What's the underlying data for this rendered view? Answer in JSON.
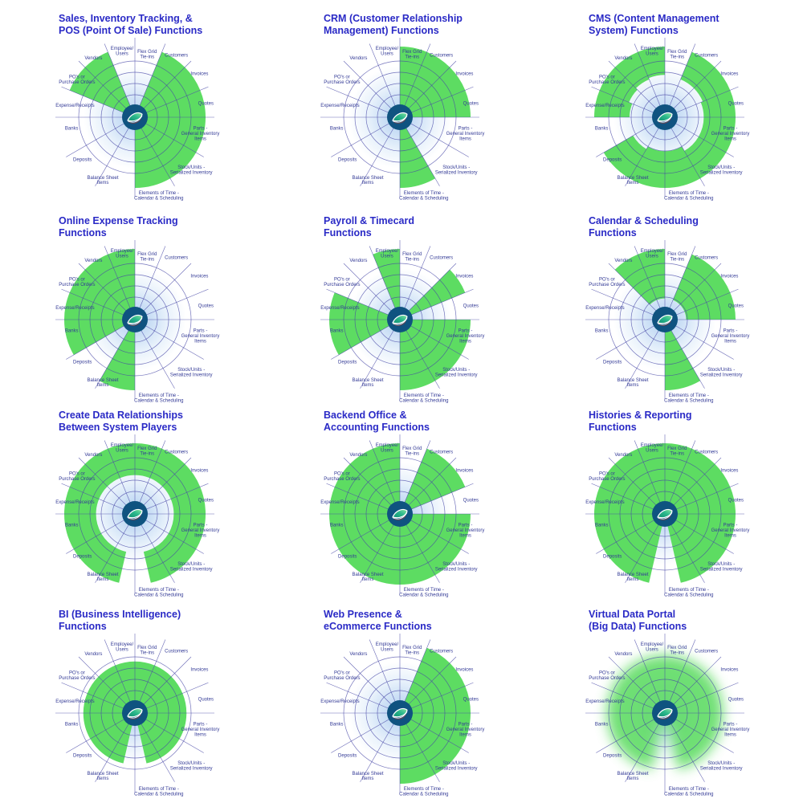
{
  "page": {
    "background": "#ffffff"
  },
  "colors": {
    "sector_green": "#5ddc62",
    "grid_line": "#4545a5",
    "glow_blue": "#bdd8f3",
    "title_blue": "#2a2ac6",
    "label_navy": "#333a96",
    "center_disc_blue": "#0f5380",
    "leaf_teal_dark": "#0d8e72",
    "leaf_green_light": "#8ee6a2",
    "leaf_outline_white": "#ffffff",
    "leaf_accent_red": "#c0392b"
  },
  "chart_data": {
    "type": "pie",
    "variant": "radial-sector-coverage-grid",
    "description": "Twelve polar charts sharing 14 business-function spokes. Green sectors mark functions covered by each module; values give [inner,outer] radial extent as fraction of full radius (null = not covered). bottom_notch = white wedge cut at the bottom (167deg-193deg). fuzzy = soft blurred green disc.",
    "grid_rings": 4,
    "legend_position": "none",
    "sector_labels": [
      "Flex Grid Tie-ins",
      "Customers",
      "Invoices",
      "Quotes",
      "Parts - General Inventory Items",
      "Stock/Units - Serialized Inventory",
      "Elements of Time - Calendar & Scheduling",
      "Balance Sheet Items",
      "Deposits",
      "Banks",
      "Expense/Receipts",
      "PO's or Purchase Orders",
      "Vendors",
      "Employee/ Users"
    ],
    "sector_label_lines": [
      [
        "Flex Grid",
        "Tie-ins"
      ],
      [
        "Customers"
      ],
      [
        "Invoices"
      ],
      [
        "Quotes"
      ],
      [
        "Parts -",
        "General Inventory",
        "Items"
      ],
      [
        "Stock/Units -",
        "Serialized Inventory"
      ],
      [
        "Elements of Time -",
        "Calendar & Scheduling"
      ],
      [
        "Balance Sheet",
        "Items"
      ],
      [
        "Deposits"
      ],
      [
        "Banks"
      ],
      [
        "Expense/Receipts"
      ],
      [
        "PO's or",
        "Purchase Orders"
      ],
      [
        "Vendors"
      ],
      [
        "Employee/",
        "Users"
      ]
    ],
    "sector_bounds_deg": [
      0,
      22.5,
      45,
      67.5,
      90,
      120,
      150,
      180,
      210,
      240,
      270,
      292.5,
      315,
      337.5,
      360
    ],
    "charts": [
      {
        "title": "Sales, Inventory Tracking, &\nPOS (Point Of Sale) Functions",
        "values": [
          null,
          [
            0,
            1
          ],
          [
            0,
            1
          ],
          [
            0,
            1
          ],
          [
            0,
            1
          ],
          [
            0,
            1
          ],
          [
            0,
            1
          ],
          null,
          null,
          null,
          null,
          [
            0,
            1
          ],
          [
            0,
            1
          ],
          null
        ],
        "bottom_notch": false,
        "fuzzy": false
      },
      {
        "title": "CRM (Customer Relationship\nManagement) Functions",
        "values": [
          [
            0,
            1
          ],
          [
            0,
            1
          ],
          [
            0,
            1
          ],
          [
            0,
            1
          ],
          null,
          null,
          [
            0,
            1
          ],
          null,
          null,
          null,
          null,
          null,
          null,
          null
        ],
        "bottom_notch": false,
        "fuzzy": false
      },
      {
        "title": "CMS (Content Management\nSystem) Functions",
        "values": [
          null,
          [
            0.58,
            1
          ],
          [
            0.58,
            1
          ],
          [
            0.55,
            1
          ],
          [
            0.55,
            1
          ],
          [
            0.55,
            1
          ],
          [
            0.48,
            1
          ],
          [
            0.48,
            1
          ],
          [
            0.52,
            1
          ],
          null,
          [
            0.5,
            1
          ],
          [
            0.55,
            1
          ],
          [
            0.58,
            1
          ],
          [
            0.6,
            1
          ]
        ],
        "bottom_notch": false,
        "fuzzy": false
      },
      {
        "title": "Online Expense Tracking\nFunctions",
        "values": [
          null,
          null,
          null,
          null,
          null,
          null,
          null,
          [
            0,
            1
          ],
          null,
          [
            0,
            1
          ],
          [
            0,
            1
          ],
          [
            0,
            1
          ],
          [
            0,
            1
          ],
          [
            0,
            1
          ]
        ],
        "bottom_notch": false,
        "fuzzy": false
      },
      {
        "title": "Payroll & Timecard\nFunctions",
        "values": [
          null,
          null,
          [
            0,
            1
          ],
          null,
          [
            0,
            1
          ],
          [
            0,
            1
          ],
          [
            0,
            1
          ],
          null,
          null,
          [
            0,
            1
          ],
          [
            0,
            1
          ],
          null,
          null,
          [
            0,
            1
          ]
        ],
        "bottom_notch": false,
        "fuzzy": false
      },
      {
        "title": "Calendar & Scheduling\nFunctions",
        "values": [
          null,
          [
            0.3,
            1
          ],
          [
            0.3,
            1
          ],
          [
            0.3,
            1
          ],
          null,
          null,
          [
            0,
            1
          ],
          null,
          null,
          null,
          null,
          null,
          [
            0.3,
            1
          ],
          [
            0.3,
            1
          ]
        ],
        "bottom_notch": false,
        "fuzzy": false
      },
      {
        "title": "Create Data Relationships\nBetween System Players",
        "values": [
          [
            0.55,
            1
          ],
          [
            0.55,
            1
          ],
          [
            0.55,
            1
          ],
          [
            0.55,
            1
          ],
          [
            0.55,
            1
          ],
          [
            0.55,
            1
          ],
          [
            0.55,
            1
          ],
          [
            0.55,
            1
          ],
          [
            0.55,
            1
          ],
          [
            0.55,
            1
          ],
          [
            0.55,
            1
          ],
          [
            0.55,
            1
          ],
          [
            0.55,
            1
          ],
          [
            0.55,
            1
          ]
        ],
        "bottom_notch": true,
        "fuzzy": false
      },
      {
        "title": "Backend Office &\nAccounting Functions",
        "values": [
          null,
          [
            0,
            1
          ],
          [
            0,
            1
          ],
          null,
          [
            0,
            1
          ],
          [
            0,
            1
          ],
          [
            0,
            1
          ],
          [
            0,
            1
          ],
          [
            0,
            1
          ],
          [
            0,
            1
          ],
          [
            0,
            1
          ],
          [
            0,
            1
          ],
          [
            0,
            1
          ],
          [
            0,
            1
          ]
        ],
        "bottom_notch": false,
        "fuzzy": false
      },
      {
        "title": "Histories & Reporting\nFunctions",
        "values": [
          [
            0,
            1
          ],
          [
            0,
            1
          ],
          [
            0,
            1
          ],
          [
            0,
            1
          ],
          [
            0,
            1
          ],
          [
            0,
            1
          ],
          [
            0,
            1
          ],
          [
            0,
            1
          ],
          [
            0,
            1
          ],
          [
            0,
            1
          ],
          [
            0,
            1
          ],
          [
            0,
            1
          ],
          [
            0,
            1
          ],
          [
            0,
            1
          ]
        ],
        "bottom_notch": true,
        "fuzzy": false
      },
      {
        "title": "BI (Business Intelligence)\nFunctions",
        "values": [
          [
            0,
            0.73
          ],
          [
            0,
            0.73
          ],
          [
            0,
            0.73
          ],
          [
            0,
            0.73
          ],
          [
            0,
            0.73
          ],
          [
            0,
            0.73
          ],
          [
            0,
            0.73
          ],
          [
            0,
            0.73
          ],
          [
            0,
            0.73
          ],
          [
            0,
            0.73
          ],
          [
            0,
            0.73
          ],
          [
            0,
            0.73
          ],
          [
            0,
            0.73
          ],
          [
            0,
            0.73
          ]
        ],
        "bottom_notch": true,
        "fuzzy": false
      },
      {
        "title": "Web Presence &\neCommerce Functions",
        "values": [
          null,
          [
            0,
            1
          ],
          [
            0,
            1
          ],
          [
            0,
            1
          ],
          [
            0,
            1
          ],
          [
            0,
            1
          ],
          [
            0,
            1
          ],
          null,
          null,
          null,
          null,
          null,
          null,
          null
        ],
        "bottom_notch": false,
        "fuzzy": false
      },
      {
        "title": "Virtual Data Portal\n(Big Data) Functions",
        "values": [
          null,
          null,
          null,
          null,
          null,
          null,
          null,
          null,
          null,
          null,
          null,
          null,
          null,
          null
        ],
        "bottom_notch": true,
        "fuzzy": true,
        "fuzzy_radius": 0.82
      }
    ]
  }
}
